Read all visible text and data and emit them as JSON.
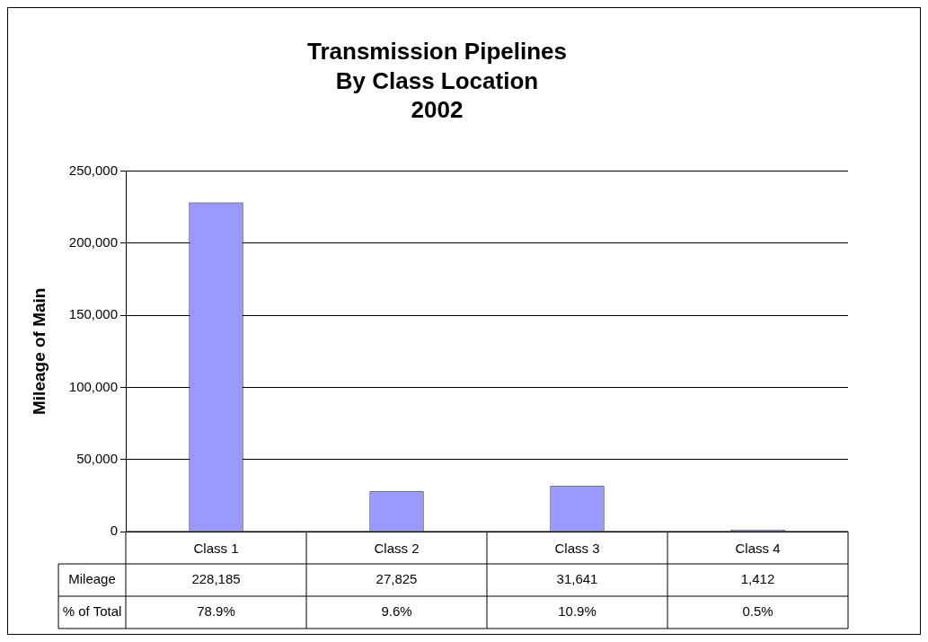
{
  "chart_data": {
    "type": "bar",
    "title": "Transmission Pipelines\nBy Class Location\n2002",
    "ylabel": "Mileage of Main",
    "categories": [
      "Class 1",
      "Class 2",
      "Class 3",
      "Class 4"
    ],
    "series": [
      {
        "name": "Mileage",
        "color": "#9999ff",
        "values": [
          228185,
          27825,
          31641,
          1412
        ],
        "value_labels": [
          "228,185",
          "27,825",
          "31,641",
          "1,412"
        ]
      }
    ],
    "ylim": [
      0,
      250000
    ],
    "yticks": [
      0,
      {
        "value": 50000,
        "label": "50,000"
      },
      {
        "value": 100000,
        "label": "100,000"
      },
      {
        "value": 150000,
        "label": "150,000"
      },
      {
        "value": 200000,
        "label": "200,000"
      },
      {
        "value": 250000,
        "label": "250,000"
      }
    ],
    "grid": "y",
    "legend": false,
    "annotations": [
      "% of Total",
      "78.9%",
      "9.6%",
      "10.9%",
      "0.5%"
    ]
  }
}
